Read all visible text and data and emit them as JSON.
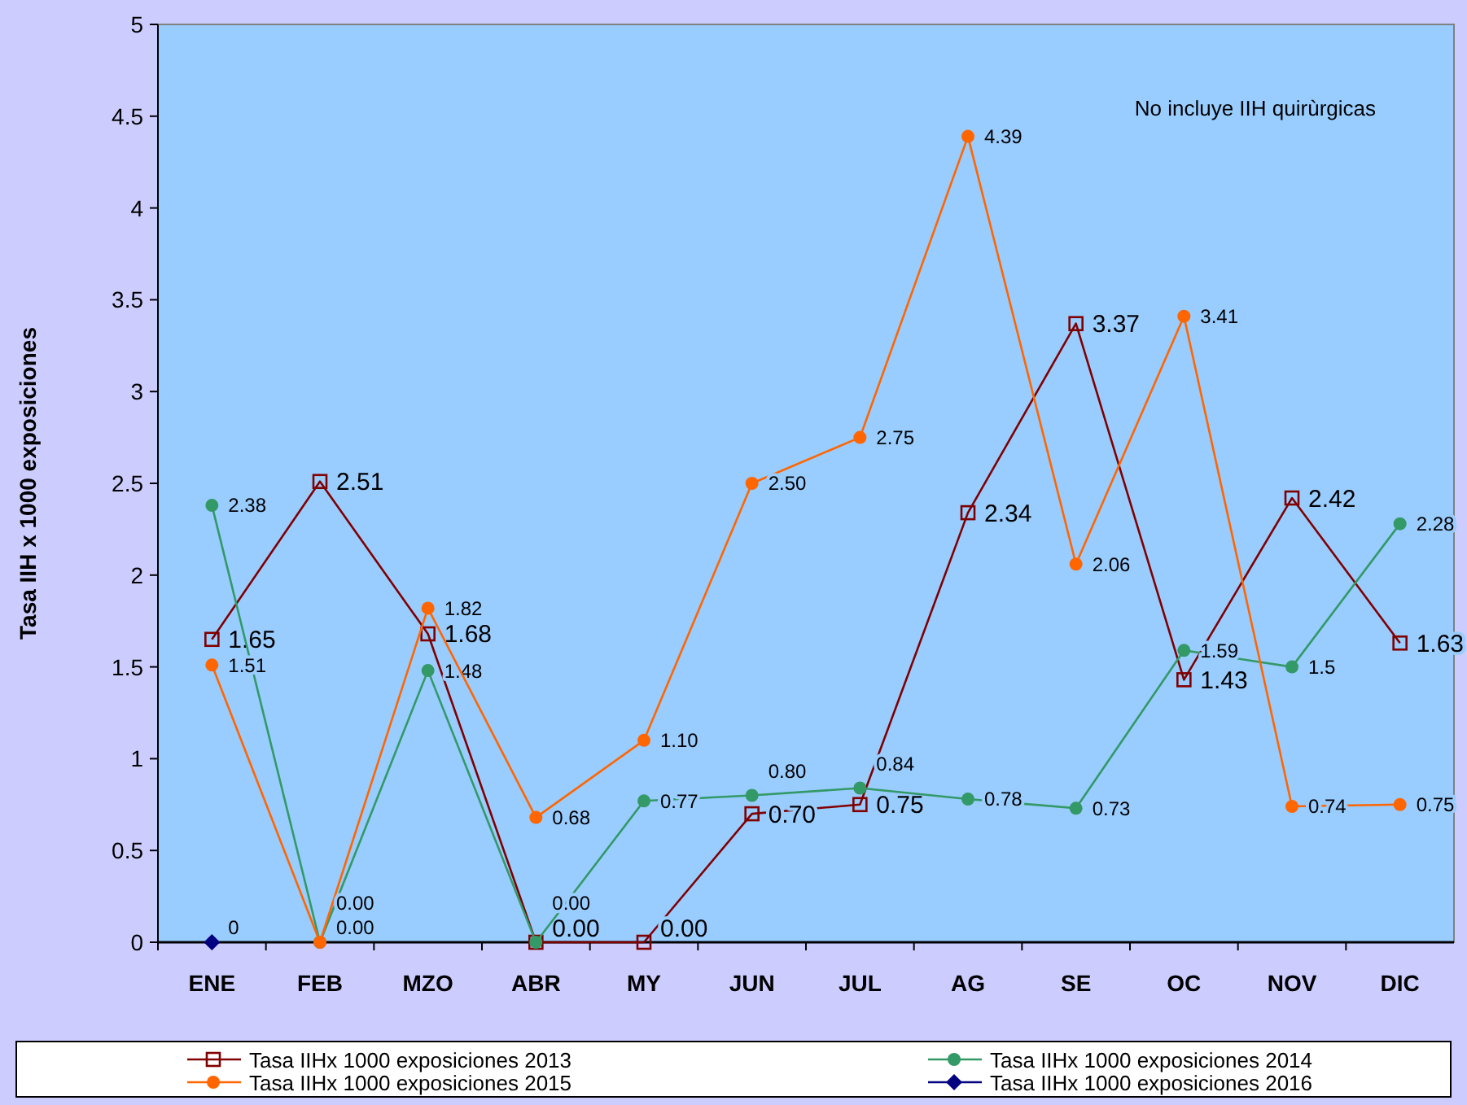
{
  "chart_data": {
    "type": "line",
    "ylabel": "Tasa IIH x 1000 exposiciones",
    "annotations": [
      "No incluye IIH quirùrgicas"
    ],
    "categories": [
      "ENE",
      "FEB",
      "MZO",
      "ABR",
      "MY",
      "JUN",
      "JUL",
      "AG",
      "SE",
      "OC",
      "NOV",
      "DIC"
    ],
    "ylim": [
      0,
      5
    ],
    "yticks": [
      0,
      0.5,
      1,
      1.5,
      2,
      2.5,
      3,
      3.5,
      4,
      4.5,
      5
    ],
    "grid": false,
    "legend": "bottom",
    "series": [
      {
        "name": "Tasa IIHx 1000 exposiciones 2013",
        "color": "#800000",
        "marker": "square",
        "values": [
          1.65,
          2.51,
          1.68,
          0,
          0,
          0.7,
          0.75,
          2.34,
          3.37,
          1.43,
          2.42,
          1.63
        ],
        "value_labels": [
          "1.65",
          "2.51",
          "1.68",
          "0.00",
          "0.00",
          "0.70",
          "0.75",
          "2.34",
          "3.37",
          "1.43",
          "2.42",
          "1.63"
        ]
      },
      {
        "name": "Tasa IIHx 1000 exposiciones 2014",
        "color": "#339966",
        "marker": "circle",
        "values": [
          2.38,
          0,
          1.48,
          0,
          0.77,
          0.8,
          0.84,
          0.78,
          0.73,
          1.59,
          1.5,
          2.28
        ],
        "value_labels": [
          "2.38",
          "0.00",
          "1.48",
          "0.00",
          "0.77",
          "0.80",
          "0.84",
          "0.78",
          "0.73",
          "1.59",
          "1.5",
          "2.28"
        ]
      },
      {
        "name": "Tasa IIHx 1000 exposiciones 2015",
        "color": "#ff6600",
        "marker": "circle",
        "values": [
          1.51,
          0,
          1.82,
          0.68,
          1.1,
          2.5,
          2.75,
          4.39,
          2.06,
          3.41,
          0.74,
          0.75
        ],
        "value_labels": [
          "1.51",
          "0.00",
          "1.82",
          "0.68",
          "1.10",
          "2.50",
          "2.75",
          "4.39",
          "2.06",
          "3.41",
          "0.74",
          "0.75"
        ]
      },
      {
        "name": "Tasa IIHx 1000 exposiciones 2016",
        "color": "#000080",
        "marker": "diamond",
        "values": [
          0,
          null,
          null,
          null,
          null,
          null,
          null,
          null,
          null,
          null,
          null,
          null
        ],
        "value_labels": [
          "0",
          null,
          null,
          null,
          null,
          null,
          null,
          null,
          null,
          null,
          null,
          null
        ]
      }
    ]
  }
}
